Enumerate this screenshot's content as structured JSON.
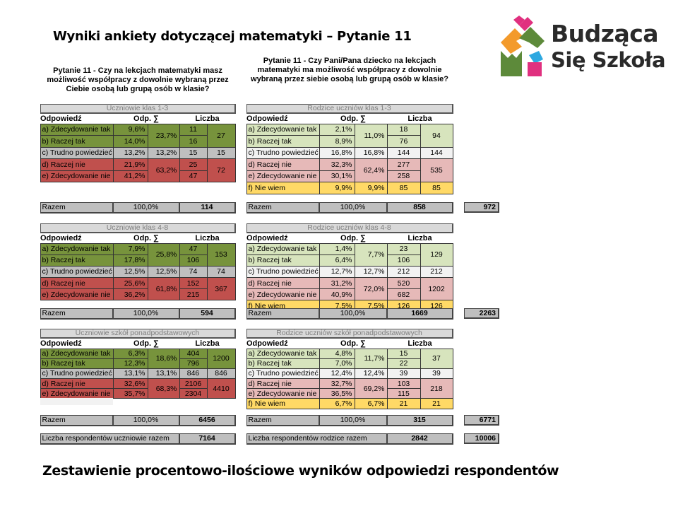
{
  "title": "Wyniki ankiety dotyczącej matematyki – Pytanie 11",
  "question_students": "Pytanie 11 - Czy na lekcjach matematyki masz możliwość współpracy z dowolnie wybraną przez Ciebie osobą lub grupą osób w klasie?",
  "question_parents": "Pytanie 11 - Czy Pani/Pana dziecko na lekcjach matematyki ma możliwość współpracy z dowolnie wybraną przez siebie osobą lub grupą osób w klasie?",
  "footer": "Zestawienie procentowo-ilościowe wyników odpowiedzi respondentów",
  "logo": {
    "line1": "Budząca",
    "line2": "Się Szkoła"
  },
  "headers": {
    "answer": "Odpowiedź",
    "pct": "Odp. ∑",
    "count": "Liczba"
  },
  "razem_label": "Razem",
  "colors": {
    "dark_green": "#77933c",
    "gray": "#bfbfbf",
    "red": "#c0504d",
    "light_green": "#d7e4bd",
    "white": "#f2f2f2",
    "pink": "#e6b9b8",
    "yellow": "#ffd966"
  },
  "sections": [
    {
      "students": {
        "title": "Uczniowie klas 1-3",
        "rows": [
          {
            "label": "a) Zdecydowanie tak",
            "pct": "9,6%",
            "count": "11"
          },
          {
            "label": "b) Raczej tak",
            "pct": "14,0%",
            "count": "16"
          },
          {
            "label": "c) Trudno powiedzieć",
            "pct": "13,2%",
            "count": "15"
          },
          {
            "label": "d) Raczej nie",
            "pct": "21,9%",
            "count": "25"
          },
          {
            "label": "e) Zdecydowanie nie",
            "pct": "41,2%",
            "count": "47"
          }
        ],
        "groups": [
          {
            "sum": "23,7%",
            "total": "27"
          },
          {
            "sum": "13,2%",
            "total": "15"
          },
          {
            "sum": "63,2%",
            "total": "72"
          }
        ],
        "razem": {
          "pct": "100,0%",
          "count": "114"
        }
      },
      "parents": {
        "title": "Rodzice uczniów klas 1-3",
        "rows": [
          {
            "label": "a) Zdecydowanie tak",
            "pct": "2,1%",
            "count": "18"
          },
          {
            "label": "b) Raczej tak",
            "pct": "8,9%",
            "count": "76"
          },
          {
            "label": "c) Trudno powiedzieć",
            "pct": "16,8%",
            "count": "144"
          },
          {
            "label": "d) Raczej nie",
            "pct": "32,3%",
            "count": "277"
          },
          {
            "label": "e) Zdecydowanie nie",
            "pct": "30,1%",
            "count": "258"
          },
          {
            "label": "f) Nie wiem",
            "pct": "9,9%",
            "count": "85"
          }
        ],
        "groups": [
          {
            "sum": "11,0%",
            "total": "94"
          },
          {
            "sum": "16,8%",
            "total": "144"
          },
          {
            "sum": "62,4%",
            "total": "535"
          },
          {
            "sum": "9,9%",
            "total": "85"
          }
        ],
        "razem": {
          "pct": "100,0%",
          "count": "858"
        }
      },
      "grand_total": "972"
    },
    {
      "students": {
        "title": "Uczniowie klas 4-8",
        "rows": [
          {
            "label": "a) Zdecydowanie tak",
            "pct": "7,9%",
            "count": "47"
          },
          {
            "label": "b) Raczej tak",
            "pct": "17,8%",
            "count": "106"
          },
          {
            "label": "c) Trudno powiedzieć",
            "pct": "12,5%",
            "count": "74"
          },
          {
            "label": "d) Raczej nie",
            "pct": "25,6%",
            "count": "152"
          },
          {
            "label": "e) Zdecydowanie nie",
            "pct": "36,2%",
            "count": "215"
          }
        ],
        "groups": [
          {
            "sum": "25,8%",
            "total": "153"
          },
          {
            "sum": "12,5%",
            "total": "74"
          },
          {
            "sum": "61,8%",
            "total": "367"
          }
        ],
        "razem": {
          "pct": "100,0%",
          "count": "594"
        }
      },
      "parents": {
        "title": "Rodzice uczniów klas 4-8",
        "rows": [
          {
            "label": "a) Zdecydowanie tak",
            "pct": "1,4%",
            "count": "23"
          },
          {
            "label": "b) Raczej tak",
            "pct": "6,4%",
            "count": "106"
          },
          {
            "label": "c) Trudno powiedzieć",
            "pct": "12,7%",
            "count": "212"
          },
          {
            "label": "d) Raczej nie",
            "pct": "31,2%",
            "count": "520"
          },
          {
            "label": "e) Zdecydowanie nie",
            "pct": "40,9%",
            "count": "682"
          },
          {
            "label": "f) Nie wiem",
            "pct": "7,5%",
            "count": "126"
          }
        ],
        "groups": [
          {
            "sum": "7,7%",
            "total": "129"
          },
          {
            "sum": "12,7%",
            "total": "212"
          },
          {
            "sum": "72,0%",
            "total": "1202"
          },
          {
            "sum": "7,5%",
            "total": "126"
          }
        ],
        "razem": {
          "pct": "100,0%",
          "count": "1669"
        }
      },
      "grand_total": "2263"
    },
    {
      "students": {
        "title": "Uczniowie szkół ponadpodstawowych",
        "rows": [
          {
            "label": "a) Zdecydowanie tak",
            "pct": "6,3%",
            "count": "404"
          },
          {
            "label": "b) Raczej tak",
            "pct": "12,3%",
            "count": "796"
          },
          {
            "label": "c) Trudno powiedzieć",
            "pct": "13,1%",
            "count": "846"
          },
          {
            "label": "d) Raczej nie",
            "pct": "32,6%",
            "count": "2106"
          },
          {
            "label": "e) Zdecydowanie nie",
            "pct": "35,7%",
            "count": "2304"
          }
        ],
        "groups": [
          {
            "sum": "18,6%",
            "total": "1200"
          },
          {
            "sum": "13,1%",
            "total": "846"
          },
          {
            "sum": "68,3%",
            "total": "4410"
          }
        ],
        "razem": {
          "pct": "100,0%",
          "count": "6456"
        }
      },
      "parents": {
        "title": "Rodzice uczniów szkół ponadpodstawowych",
        "rows": [
          {
            "label": "a) Zdecydowanie tak",
            "pct": "4,8%",
            "count": "15"
          },
          {
            "label": "b) Raczej tak",
            "pct": "7,0%",
            "count": "22"
          },
          {
            "label": "c) Trudno powiedzieć",
            "pct": "12,4%",
            "count": "39"
          },
          {
            "label": "d) Raczej nie",
            "pct": "32,7%",
            "count": "103"
          },
          {
            "label": "e) Zdecydowanie nie",
            "pct": "36,5%",
            "count": "115"
          },
          {
            "label": "f) Nie wiem",
            "pct": "6,7%",
            "count": "21"
          }
        ],
        "groups": [
          {
            "sum": "11,7%",
            "total": "37"
          },
          {
            "sum": "12,4%",
            "total": "39"
          },
          {
            "sum": "69,2%",
            "total": "218"
          },
          {
            "sum": "6,7%",
            "total": "21"
          }
        ],
        "razem": {
          "pct": "100,0%",
          "count": "315"
        }
      },
      "grand_total": "6771"
    }
  ],
  "respondents": {
    "students_label": "Liczba respondentów uczniowie razem",
    "students_count": "7164",
    "parents_label": "Liczba respondentów rodzice razem",
    "parents_count": "2842",
    "grand_total": "10006"
  }
}
